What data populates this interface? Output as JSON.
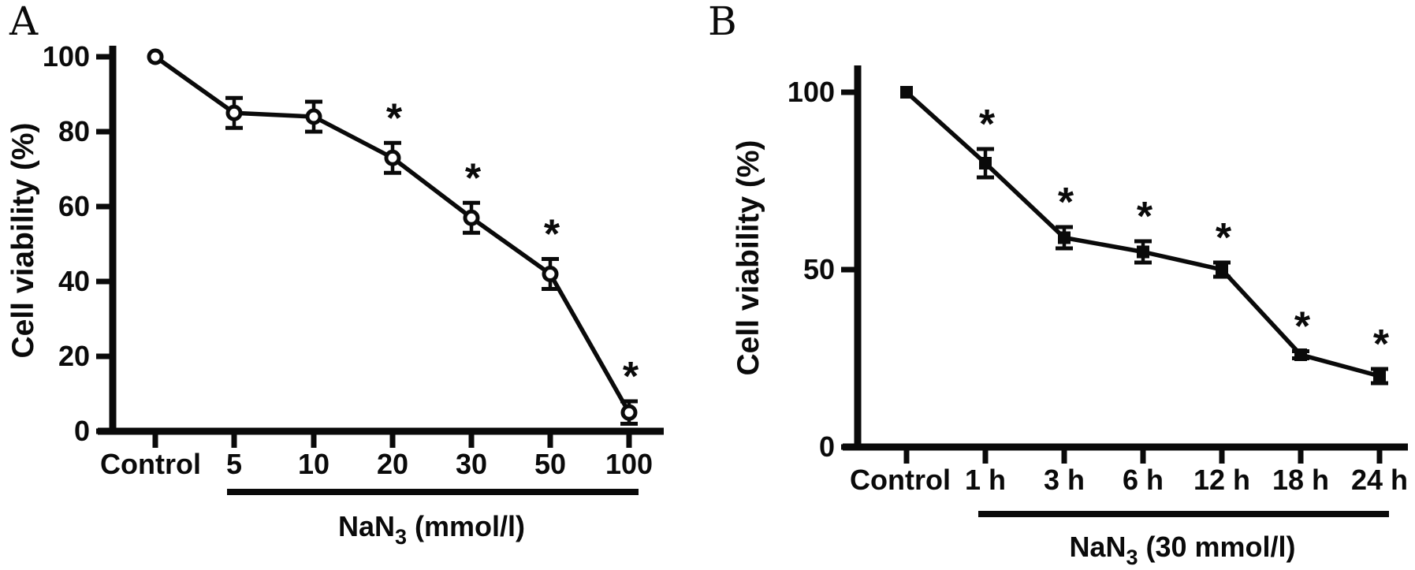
{
  "figure": {
    "background": "#ffffff",
    "ink_color": "#0a0a0a",
    "panel_a_label": "A",
    "panel_b_label": "B"
  },
  "chart_data": [
    {
      "panel_label": "A",
      "type": "line",
      "marker": "open-circle",
      "ylabel": "Cell viability (%)",
      "yticks": [
        0,
        20,
        40,
        60,
        80,
        100
      ],
      "ylim": [
        0,
        105
      ],
      "grid": false,
      "legend": "none",
      "categories": [
        "Control",
        "5",
        "10",
        "20",
        "30",
        "50",
        "100"
      ],
      "series": [
        {
          "name": "Cell viability (%)",
          "values": [
            100,
            85,
            84,
            73,
            57,
            42,
            5
          ],
          "errors": [
            0,
            4,
            4,
            4,
            4,
            4,
            3
          ],
          "significance": [
            "",
            "",
            "",
            "*",
            "*",
            "*",
            "*"
          ]
        }
      ],
      "significance_symbol": "*",
      "treatment_label": {
        "main": "NaN",
        "subscript": "3",
        "rest": " (mmol/l)"
      },
      "treatment_underline_categories": [
        "5",
        "100"
      ]
    },
    {
      "panel_label": "B",
      "type": "line",
      "marker": "filled-square",
      "ylabel": "Cell viability (%)",
      "yticks": [
        0,
        50,
        100
      ],
      "ylim": [
        0,
        108
      ],
      "grid": false,
      "legend": "none",
      "categories": [
        "Control",
        "1 h",
        "3 h",
        "6 h",
        "12 h",
        "18 h",
        "24 h"
      ],
      "series": [
        {
          "name": "Cell viability (%)",
          "values": [
            100,
            80,
            59,
            55,
            50,
            26,
            20
          ],
          "errors": [
            0,
            4,
            3,
            3,
            2,
            1,
            2
          ],
          "significance": [
            "",
            "*",
            "*",
            "*",
            "*",
            "*",
            "*"
          ]
        }
      ],
      "significance_symbol": "*",
      "treatment_label": {
        "main": "NaN",
        "subscript": "3",
        "rest": " (30 mmol/l)"
      },
      "treatment_underline_categories": [
        "1 h",
        "24 h"
      ]
    }
  ]
}
